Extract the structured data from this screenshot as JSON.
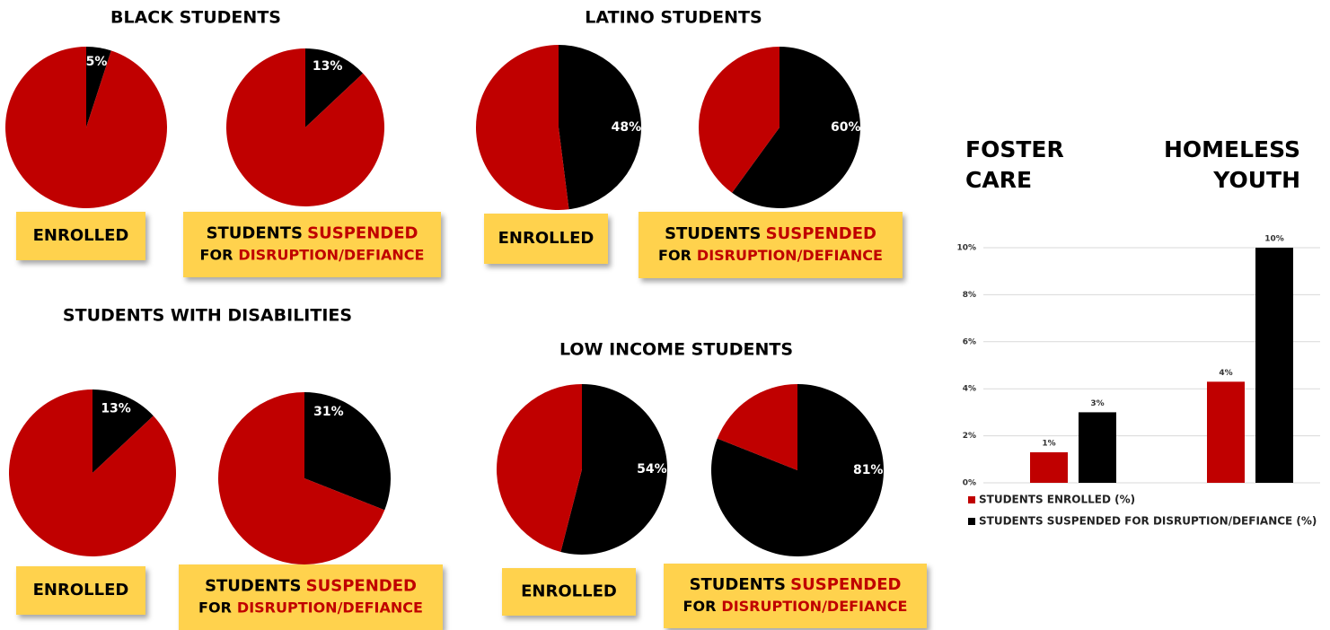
{
  "chart_data": [
    {
      "type": "pie",
      "title": "BLACK STUDENTS",
      "colors": [
        "#c00000",
        "#000000"
      ],
      "pies": [
        {
          "values": [
            95,
            5
          ],
          "value_labels": [
            null,
            "5%"
          ],
          "caption": [
            [
              {
                "text": "ENROLLED"
              }
            ]
          ]
        },
        {
          "values": [
            87,
            13
          ],
          "value_labels": [
            null,
            "13%"
          ],
          "caption": [
            [
              {
                "text": "STUDENTS"
              },
              {
                "text": "SUSPENDED",
                "color": "#c00000"
              }
            ],
            [
              {
                "text": "FOR"
              },
              {
                "text": "DISRUPTION/DEFIANCE",
                "color": "#c00000"
              }
            ]
          ]
        }
      ]
    },
    {
      "type": "pie",
      "title": "LATINO STUDENTS",
      "colors": [
        "#c00000",
        "#000000"
      ],
      "pies": [
        {
          "values": [
            52,
            48
          ],
          "value_labels": [
            null,
            "48%"
          ],
          "caption": [
            [
              {
                "text": "ENROLLED"
              }
            ]
          ]
        },
        {
          "values": [
            40,
            60
          ],
          "value_labels": [
            null,
            "60%"
          ],
          "caption": [
            [
              {
                "text": "STUDENTS"
              },
              {
                "text": "SUSPENDED",
                "color": "#c00000"
              }
            ],
            [
              {
                "text": "FOR"
              },
              {
                "text": "DISRUPTION/DEFIANCE",
                "color": "#c00000"
              }
            ]
          ]
        }
      ]
    },
    {
      "type": "pie",
      "title": "STUDENTS WITH DISABILITIES",
      "colors": [
        "#c00000",
        "#000000"
      ],
      "pies": [
        {
          "values": [
            87,
            13
          ],
          "value_labels": [
            null,
            "13%"
          ],
          "caption": [
            [
              {
                "text": "ENROLLED"
              }
            ]
          ]
        },
        {
          "values": [
            69,
            31
          ],
          "value_labels": [
            null,
            "31%"
          ],
          "caption": [
            [
              {
                "text": "STUDENTS"
              },
              {
                "text": "SUSPENDED",
                "color": "#c00000"
              }
            ],
            [
              {
                "text": "FOR"
              },
              {
                "text": "DISRUPTION/DEFIANCE",
                "color": "#c00000"
              }
            ]
          ]
        }
      ]
    },
    {
      "type": "pie",
      "title": "LOW INCOME STUDENTS",
      "colors": [
        "#c00000",
        "#000000"
      ],
      "pies": [
        {
          "values": [
            46,
            54
          ],
          "value_labels": [
            null,
            "54%"
          ],
          "caption": [
            [
              {
                "text": "ENROLLED"
              }
            ]
          ]
        },
        {
          "values": [
            19,
            81
          ],
          "value_labels": [
            null,
            "81%"
          ],
          "caption": [
            [
              {
                "text": "STUDENTS"
              },
              {
                "text": "SUSPENDED",
                "color": "#c00000"
              }
            ],
            [
              {
                "text": "FOR"
              },
              {
                "text": "DISRUPTION/DEFIANCE",
                "color": "#c00000"
              }
            ]
          ]
        }
      ]
    },
    {
      "type": "bar",
      "categories": [
        "FOSTER CARE YOUTH",
        "HOMELESS YOUTH"
      ],
      "series": [
        {
          "name": "STUDENTS ENROLLED (%)",
          "color": "#c00000",
          "values": [
            1.3,
            4.3
          ],
          "value_labels": [
            "1%",
            "4%"
          ]
        },
        {
          "name": "STUDENTS SUSPENDED FOR DISRUPTION/DEFIANCE (%)",
          "color": "#000000",
          "values": [
            3,
            10
          ],
          "value_labels": [
            "3%",
            "10%"
          ]
        }
      ],
      "ylim": [
        0,
        10
      ],
      "yticks": [
        {
          "value": 0,
          "label": "0%"
        },
        {
          "value": 2,
          "label": "2%"
        },
        {
          "value": 4,
          "label": "4%"
        },
        {
          "value": 6,
          "label": "6%"
        },
        {
          "value": 8,
          "label": "8%"
        },
        {
          "value": 10,
          "label": "10%"
        }
      ],
      "grid": true
    }
  ]
}
